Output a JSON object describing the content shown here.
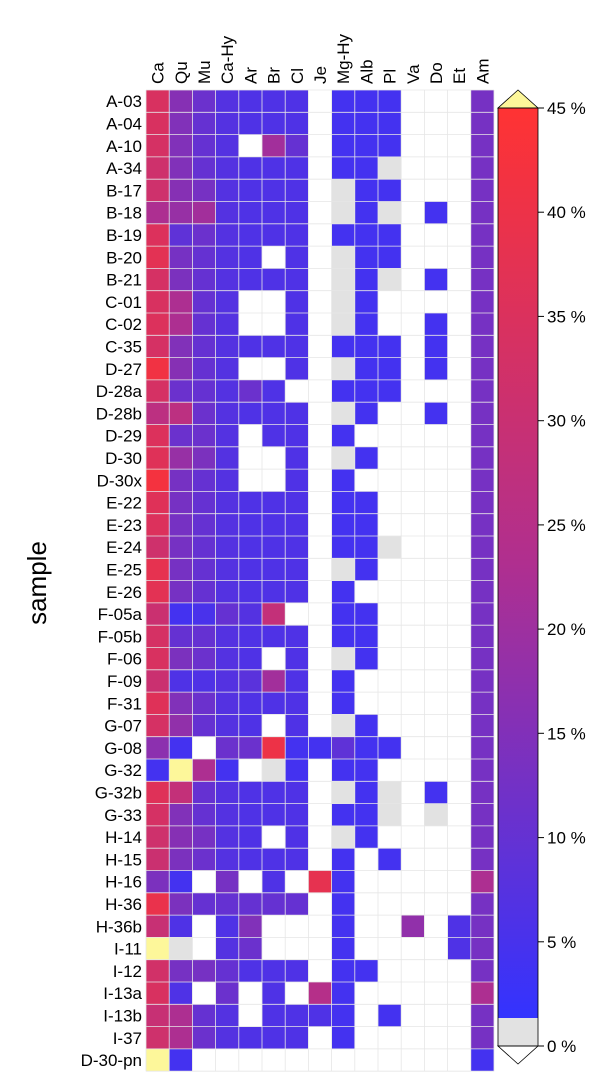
{
  "chart_data": {
    "type": "heatmap",
    "title": "",
    "ylabel": "sample",
    "xlabel": "",
    "columns": [
      "Ca",
      "Qu",
      "Mu",
      "Ca-Hy",
      "Ar",
      "Br",
      "Cl",
      "Je",
      "Mg-Hy",
      "Alb",
      "Pl",
      "Va",
      "Do",
      "Et",
      "Am"
    ],
    "rows": [
      "A-03",
      "A-04",
      "A-10",
      "A-34",
      "B-17",
      "B-18",
      "B-19",
      "B-20",
      "B-21",
      "C-01",
      "C-02",
      "C-35",
      "D-27",
      "D-28a",
      "D-28b",
      "D-29",
      "D-30",
      "D-30x",
      "E-22",
      "E-23",
      "E-24",
      "E-25",
      "E-26",
      "F-05a",
      "F-05b",
      "F-06",
      "F-09",
      "F-31",
      "G-07",
      "G-08",
      "G-32",
      "G-32b",
      "G-33",
      "H-14",
      "H-15",
      "H-16",
      "H-36",
      "H-36b",
      "I-11",
      "I-12",
      "I-13a",
      "I-13b",
      "I-37",
      "D-30-pn"
    ],
    "values": [
      [
        34,
        15,
        10,
        6,
        5,
        5,
        5,
        null,
        3,
        3,
        3,
        null,
        null,
        null,
        12
      ],
      [
        34,
        14,
        9,
        6,
        5,
        5,
        5,
        null,
        3,
        3,
        3,
        null,
        null,
        null,
        12
      ],
      [
        33,
        14,
        9,
        6,
        null,
        20,
        9,
        null,
        3,
        3,
        3,
        null,
        null,
        null,
        12
      ],
      [
        31,
        14,
        9,
        6,
        5,
        5,
        5,
        null,
        3,
        3,
        0,
        null,
        null,
        null,
        12
      ],
      [
        31,
        15,
        12,
        6,
        5,
        5,
        5,
        null,
        0,
        3,
        3,
        null,
        null,
        null,
        12
      ],
      [
        22,
        18,
        20,
        6,
        5,
        5,
        5,
        null,
        0,
        3,
        0,
        null,
        3,
        null,
        12
      ],
      [
        35,
        8,
        10,
        6,
        5,
        5,
        5,
        null,
        3,
        3,
        3,
        null,
        null,
        null,
        12
      ],
      [
        37,
        12,
        9,
        6,
        5,
        null,
        5,
        null,
        0,
        3,
        3,
        null,
        null,
        null,
        12
      ],
      [
        33,
        13,
        9,
        6,
        5,
        5,
        5,
        null,
        0,
        3,
        0,
        null,
        3,
        null,
        12
      ],
      [
        34,
        22,
        9,
        6,
        null,
        null,
        5,
        null,
        0,
        3,
        null,
        null,
        null,
        null,
        12
      ],
      [
        35,
        22,
        9,
        6,
        null,
        null,
        5,
        null,
        0,
        3,
        null,
        null,
        3,
        null,
        12
      ],
      [
        33,
        14,
        9,
        6,
        5,
        5,
        5,
        null,
        3,
        3,
        3,
        null,
        3,
        null,
        12
      ],
      [
        41,
        15,
        9,
        6,
        null,
        null,
        5,
        null,
        0,
        3,
        3,
        null,
        3,
        null,
        12
      ],
      [
        33,
        10,
        9,
        6,
        10,
        5,
        null,
        null,
        3,
        3,
        3,
        null,
        null,
        null,
        12
      ],
      [
        26,
        26,
        10,
        6,
        5,
        5,
        5,
        null,
        0,
        3,
        null,
        null,
        3,
        null,
        12
      ],
      [
        35,
        10,
        10,
        6,
        null,
        5,
        5,
        null,
        3,
        null,
        null,
        null,
        null,
        null,
        12
      ],
      [
        36,
        18,
        13,
        6,
        null,
        null,
        5,
        null,
        0,
        3,
        null,
        null,
        null,
        null,
        12
      ],
      [
        42,
        12,
        9,
        6,
        null,
        null,
        5,
        null,
        3,
        null,
        null,
        null,
        null,
        null,
        12
      ],
      [
        36,
        12,
        9,
        6,
        5,
        5,
        5,
        null,
        3,
        3,
        null,
        null,
        null,
        null,
        12
      ],
      [
        35,
        12,
        9,
        6,
        5,
        5,
        5,
        null,
        3,
        3,
        null,
        null,
        null,
        null,
        12
      ],
      [
        31,
        12,
        9,
        6,
        5,
        5,
        5,
        null,
        3,
        3,
        0,
        null,
        null,
        null,
        12
      ],
      [
        38,
        12,
        9,
        6,
        5,
        5,
        5,
        null,
        0,
        3,
        null,
        null,
        null,
        null,
        12
      ],
      [
        37,
        12,
        9,
        6,
        5,
        5,
        5,
        null,
        3,
        null,
        null,
        null,
        null,
        null,
        12
      ],
      [
        30,
        3,
        4,
        9,
        6,
        28,
        null,
        null,
        3,
        3,
        null,
        null,
        null,
        null,
        12
      ],
      [
        33,
        9,
        9,
        6,
        5,
        5,
        5,
        null,
        3,
        3,
        null,
        null,
        null,
        null,
        12
      ],
      [
        34,
        13,
        10,
        6,
        5,
        null,
        5,
        null,
        0,
        3,
        null,
        null,
        null,
        null,
        12
      ],
      [
        30,
        5,
        5,
        6,
        7,
        20,
        5,
        null,
        3,
        null,
        null,
        null,
        null,
        null,
        12
      ],
      [
        36,
        14,
        10,
        6,
        5,
        5,
        5,
        null,
        3,
        null,
        null,
        null,
        null,
        null,
        12
      ],
      [
        33,
        17,
        9,
        6,
        5,
        null,
        5,
        null,
        0,
        3,
        null,
        null,
        null,
        null,
        12
      ],
      [
        16,
        3,
        null,
        10,
        10,
        40,
        3,
        3,
        8,
        3,
        3,
        null,
        null,
        null,
        12
      ],
      [
        3,
        46,
        22,
        3,
        null,
        0,
        3,
        null,
        3,
        3,
        null,
        null,
        null,
        null,
        12
      ],
      [
        36,
        28,
        9,
        6,
        5,
        5,
        5,
        null,
        0,
        3,
        0,
        null,
        3,
        null,
        12
      ],
      [
        33,
        14,
        9,
        6,
        5,
        5,
        5,
        null,
        3,
        3,
        0,
        null,
        0,
        null,
        12
      ],
      [
        31,
        15,
        12,
        6,
        5,
        null,
        5,
        null,
        0,
        3,
        null,
        null,
        null,
        null,
        12
      ],
      [
        30,
        13,
        10,
        6,
        5,
        5,
        5,
        null,
        3,
        null,
        3,
        null,
        null,
        null,
        12
      ],
      [
        13,
        3,
        null,
        12,
        null,
        5,
        null,
        38,
        3,
        null,
        null,
        null,
        null,
        null,
        22
      ],
      [
        39,
        13,
        9,
        9,
        9,
        9,
        9,
        null,
        3,
        null,
        null,
        null,
        null,
        null,
        12
      ],
      [
        29,
        5,
        null,
        5,
        14,
        null,
        null,
        null,
        3,
        null,
        null,
        17,
        null,
        5,
        12
      ],
      [
        46,
        0,
        null,
        6,
        10,
        null,
        null,
        null,
        3,
        null,
        null,
        null,
        null,
        5,
        12
      ],
      [
        32,
        12,
        12,
        9,
        5,
        5,
        5,
        null,
        3,
        3,
        null,
        null,
        null,
        null,
        12
      ],
      [
        34,
        5,
        null,
        10,
        null,
        5,
        null,
        24,
        3,
        null,
        null,
        null,
        null,
        null,
        22
      ],
      [
        29,
        22,
        9,
        6,
        null,
        5,
        5,
        5,
        3,
        null,
        3,
        null,
        null,
        null,
        12
      ],
      [
        31,
        22,
        10,
        6,
        5,
        5,
        5,
        null,
        3,
        null,
        null,
        null,
        null,
        null,
        12
      ],
      [
        47,
        3,
        null,
        null,
        null,
        null,
        null,
        null,
        null,
        null,
        null,
        null,
        null,
        null,
        3
      ]
    ],
    "colorbar": {
      "ticks": [
        0,
        5,
        10,
        15,
        20,
        25,
        30,
        35,
        40,
        45
      ],
      "tick_labels": [
        "0 %",
        "5 %",
        "10 %",
        "15 %",
        "20 %",
        "25 %",
        "30 %",
        "35 %",
        "40 %",
        "45 %"
      ],
      "range": [
        0,
        45
      ],
      "under_color": "#ffffff",
      "over_color": "#fdf79a",
      "zero_color": "#e2e2e2",
      "colors": [
        "#3333ff",
        "#b02f8f",
        "#ff3333"
      ]
    },
    "grid": true,
    "legend": "colorbar right"
  }
}
